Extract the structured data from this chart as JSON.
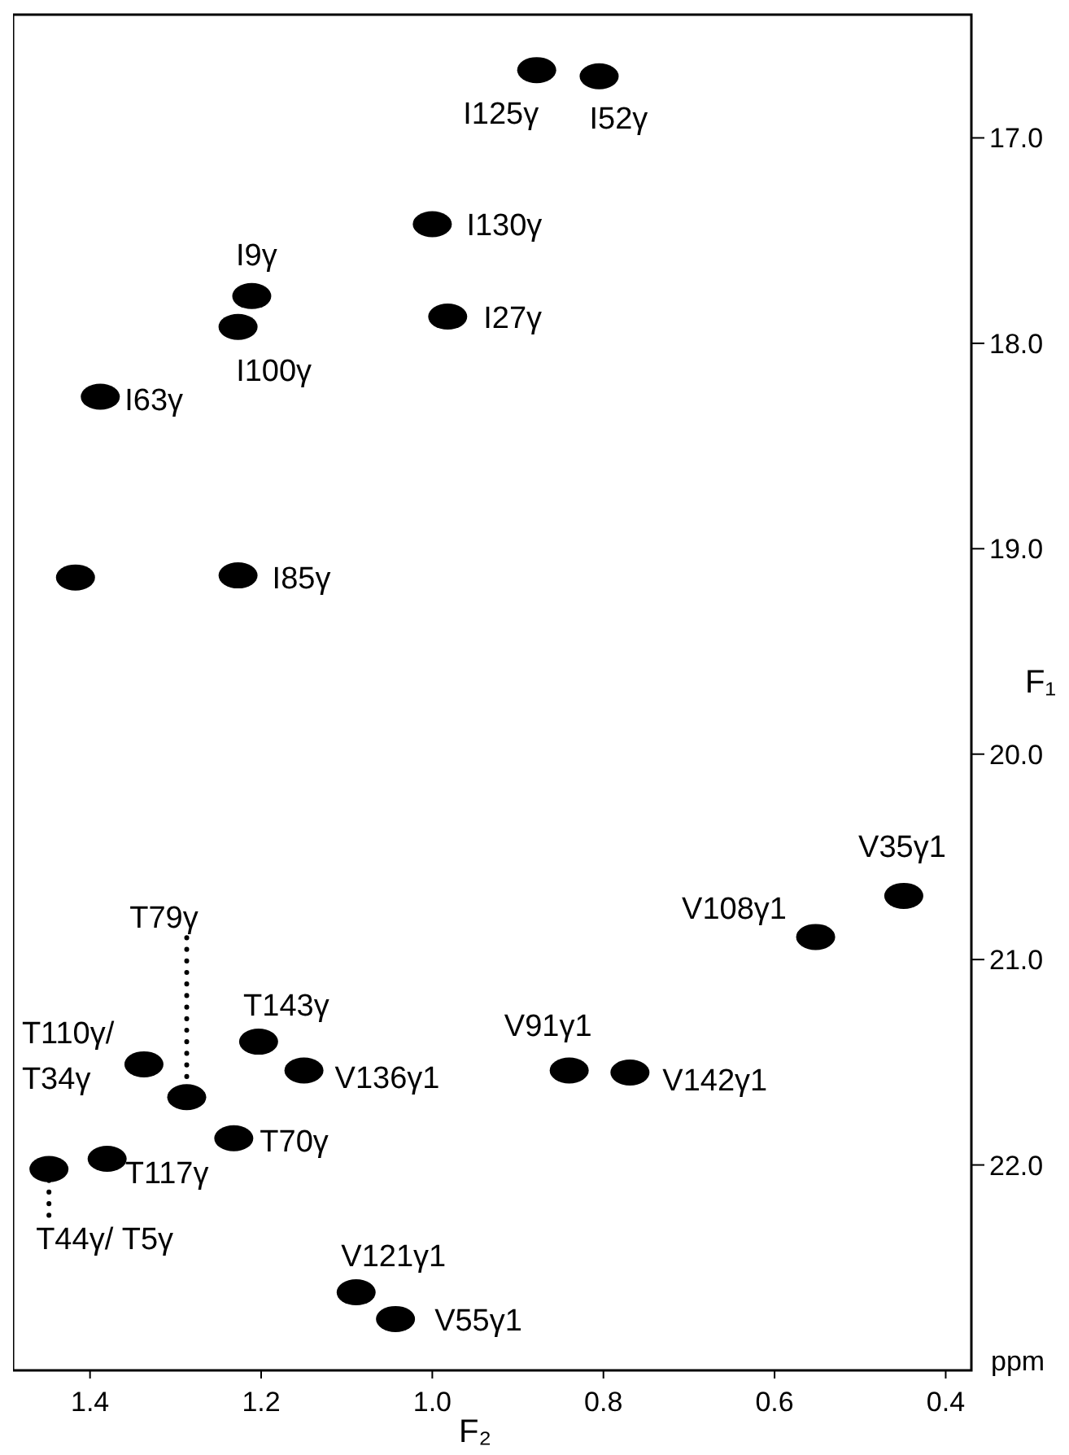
{
  "chart_data": {
    "type": "scatter",
    "xlabel": "F₂",
    "ylabel": "F₁",
    "marker": "circle",
    "grid": false,
    "xlim": [
      1.49,
      0.37
    ],
    "xticks": [
      1.4,
      1.2,
      {
        "value": 1,
        "label": "1.0"
      },
      0.8,
      0.6,
      0.4
    ],
    "ylim": [
      23.0,
      16.4
    ],
    "yticks": [
      {
        "value": 17,
        "label": "17.0"
      },
      {
        "value": 18,
        "label": "18.0"
      },
      {
        "value": 19,
        "label": "19.0"
      },
      {
        "value": 20,
        "label": "20.0"
      },
      {
        "value": 21,
        "label": "21.0"
      },
      {
        "value": 22,
        "label": "22.0"
      }
    ],
    "series": [
      {
        "color": "#000000",
        "x": [
          0.878,
          0.805,
          1.0,
          1.211,
          1.227,
          0.982,
          1.388,
          1.227,
          1.417,
          0.449,
          0.552,
          1.337,
          1.287,
          1.203,
          1.15,
          0.84,
          0.769,
          1.232,
          1.38,
          1.448,
          1.089,
          1.043
        ],
        "values": [
          16.67,
          16.7,
          17.42,
          17.77,
          17.92,
          17.87,
          18.26,
          19.13,
          19.14,
          20.69,
          20.89,
          21.51,
          21.67,
          21.4,
          21.54,
          21.54,
          21.55,
          21.87,
          21.97,
          22.02,
          22.62,
          22.75
        ]
      }
    ],
    "annotations": [
      {
        "text": "I125γ",
        "x": 0.878,
        "y": 16.67
      },
      {
        "text": "I52γ",
        "x": 0.805,
        "y": 16.7
      },
      {
        "text": "I130γ",
        "x": 1.0,
        "y": 17.42
      },
      {
        "text": "I9γ",
        "x": 1.211,
        "y": 17.77
      },
      {
        "text": "I100γ",
        "x": 1.227,
        "y": 17.92
      },
      {
        "text": "I27γ",
        "x": 0.982,
        "y": 17.87
      },
      {
        "text": "I63γ",
        "x": 1.388,
        "y": 18.26
      },
      {
        "text": "I85γ",
        "x": 1.227,
        "y": 19.13
      },
      {
        "text": "V35γ1",
        "x": 0.449,
        "y": 20.69
      },
      {
        "text": "V108γ1",
        "x": 0.552,
        "y": 20.89
      },
      {
        "text": "T110γ/T34γ",
        "x": 1.337,
        "y": 21.51
      },
      {
        "text": "T79γ",
        "x": 1.287,
        "y": 21.67
      },
      {
        "text": "T143γ",
        "x": 1.203,
        "y": 21.4
      },
      {
        "text": "V136γ1",
        "x": 1.15,
        "y": 21.54
      },
      {
        "text": "V91γ1",
        "x": 0.84,
        "y": 21.54
      },
      {
        "text": "V142γ1",
        "x": 0.769,
        "y": 21.55
      },
      {
        "text": "T70γ",
        "x": 1.232,
        "y": 21.87
      },
      {
        "text": "T117γ",
        "x": 1.38,
        "y": 21.97
      },
      {
        "text": "T44γ/ T5γ",
        "x": 1.448,
        "y": 22.02
      },
      {
        "text": "V121γ1",
        "x": 1.089,
        "y": 22.62
      },
      {
        "text": "V55γ1",
        "x": 1.043,
        "y": 22.75
      },
      "ppm"
    ]
  }
}
